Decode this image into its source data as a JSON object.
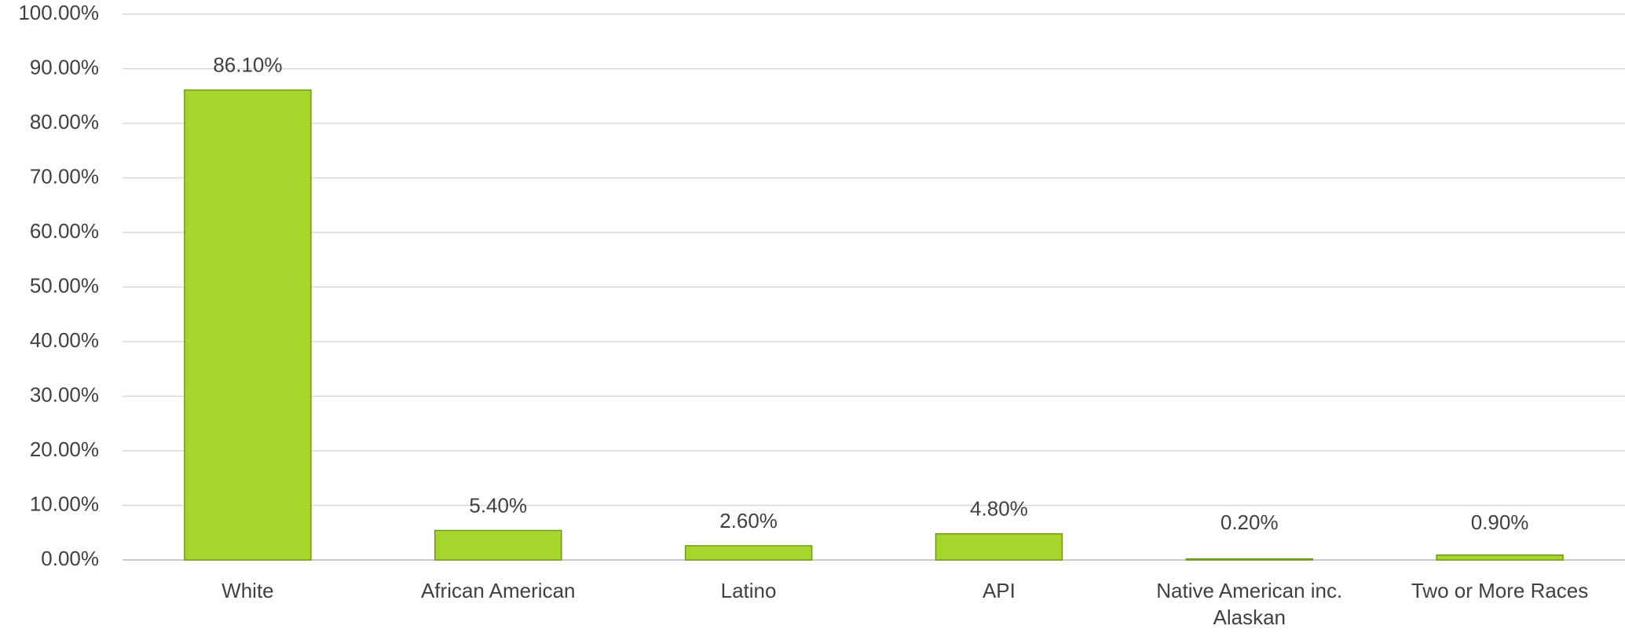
{
  "chart_data": {
    "type": "bar",
    "categories": [
      "White",
      "African American",
      "Latino",
      "API",
      "Native American inc. Alaskan",
      "Two or More Races"
    ],
    "values": [
      86.1,
      5.4,
      2.6,
      4.8,
      0.2,
      0.9
    ],
    "value_labels": [
      "86.10%",
      "5.40%",
      "2.60%",
      "4.80%",
      "0.20%",
      "0.90%"
    ],
    "color": "#a6d62c",
    "ylim": [
      0,
      100
    ],
    "yticks": [
      {
        "value": 0,
        "label": "0.00%"
      },
      {
        "value": 10,
        "label": "10.00%"
      },
      {
        "value": 20,
        "label": "20.00%"
      },
      {
        "value": 30,
        "label": "30.00%"
      },
      {
        "value": 40,
        "label": "40.00%"
      },
      {
        "value": 50,
        "label": "50.00%"
      },
      {
        "value": 60,
        "label": "60.00%"
      },
      {
        "value": 70,
        "label": "70.00%"
      },
      {
        "value": 80,
        "label": "80.00%"
      },
      {
        "value": 90,
        "label": "90.00%"
      },
      {
        "value": 100,
        "label": "100.00%"
      }
    ],
    "grid": true
  }
}
